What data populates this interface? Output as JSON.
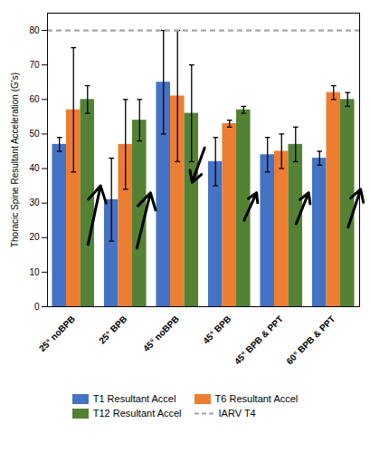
{
  "chart_data": {
    "type": "bar",
    "ylabel": "Thoracic Spine Resultant Acceleration (G's)",
    "categories": [
      "25° noBPB",
      "25° BPB",
      "45° noBPB",
      "45° BPB",
      "45° BPB & PPT",
      "60° BPB & PPT"
    ],
    "series": [
      {
        "name": "T1 Resultant Accel",
        "color": "#4472C4",
        "values": [
          47,
          31,
          65,
          42,
          44,
          43
        ],
        "errors": [
          2,
          12,
          15,
          7,
          5,
          2
        ]
      },
      {
        "name": "T6 Resultant Accel",
        "color": "#ED7D31",
        "values": [
          57,
          47,
          61,
          53,
          45,
          62
        ],
        "errors": [
          18,
          13,
          19,
          1,
          5,
          2
        ]
      },
      {
        "name": "T12 Resultant Accel",
        "color": "#548235",
        "values": [
          60,
          54,
          56,
          57,
          47,
          60
        ],
        "errors": [
          4,
          6,
          14,
          1,
          5,
          2
        ]
      }
    ],
    "reference_line": {
      "name": "IARV T4",
      "value": 80,
      "color": "#A6A6A6",
      "line_style": "dashed"
    },
    "arrows": [
      {
        "x0": 0.28,
        "y0": 18,
        "x1": 0.52,
        "y1": 35
      },
      {
        "x0": 1.22,
        "y0": 17,
        "x1": 1.48,
        "y1": 33
      },
      {
        "x0": 2.52,
        "y0": 46,
        "x1": 2.28,
        "y1": 36
      },
      {
        "x0": 3.28,
        "y0": 25,
        "x1": 3.52,
        "y1": 33
      },
      {
        "x0": 4.28,
        "y0": 24,
        "x1": 4.52,
        "y1": 33
      },
      {
        "x0": 5.28,
        "y0": 23,
        "x1": 5.52,
        "y1": 34
      }
    ],
    "ylim": [
      0,
      85
    ],
    "yticks": [
      0,
      10,
      20,
      30,
      40,
      50,
      60,
      70,
      80
    ],
    "grid": false,
    "legend": "bottom"
  }
}
